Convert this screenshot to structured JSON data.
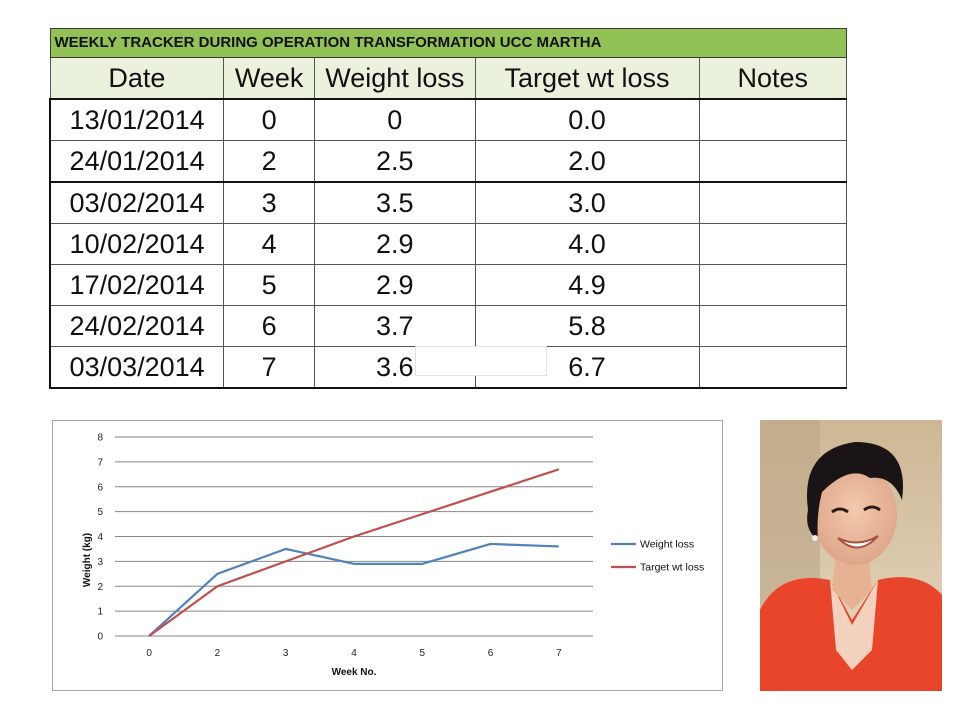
{
  "table": {
    "banner": "WEEKLY TRACKER DURING OPERATION TRANSFORMATION UCC MARTHA",
    "headers": [
      "Date",
      "Week",
      "Weight loss",
      "Target wt loss",
      "Notes"
    ],
    "rows": [
      {
        "date": "13/01/2014",
        "week": "0",
        "loss": "0",
        "target": "0.0",
        "notes": ""
      },
      {
        "date": "24/01/2014",
        "week": "2",
        "loss": "2.5",
        "target": "2.0",
        "notes": ""
      },
      {
        "date": "03/02/2014",
        "week": "3",
        "loss": "3.5",
        "target": "3.0",
        "notes": ""
      },
      {
        "date": "10/02/2014",
        "week": "4",
        "loss": "2.9",
        "target": "4.0",
        "notes": ""
      },
      {
        "date": "17/02/2014",
        "week": "5",
        "loss": "2.9",
        "target": "4.9",
        "notes": ""
      },
      {
        "date": "24/02/2014",
        "week": "6",
        "loss": "3.7",
        "target": "5.8",
        "notes": ""
      },
      {
        "date": "03/03/2014",
        "week": "7",
        "loss": "3.6",
        "target": "6.7",
        "notes": ""
      }
    ]
  },
  "chart_data": {
    "type": "line",
    "title": "",
    "xlabel": "Week No.",
    "ylabel": "Weight (kg)",
    "categories": [
      "0",
      "2",
      "3",
      "4",
      "5",
      "6",
      "7"
    ],
    "ylim": [
      0,
      8
    ],
    "yticks": [
      0,
      1,
      2,
      3,
      4,
      5,
      6,
      7,
      8
    ],
    "grid": true,
    "legend_position": "right",
    "series": [
      {
        "name": "Weight loss",
        "color": "#4f81bd",
        "values": [
          0,
          2.5,
          3.5,
          2.9,
          2.9,
          3.7,
          3.6
        ]
      },
      {
        "name": "Target wt loss",
        "color": "#c0504d",
        "values": [
          0,
          2.0,
          3.0,
          4.0,
          4.9,
          5.8,
          6.7
        ]
      }
    ]
  },
  "colors": {
    "banner_bg": "#92c156",
    "header_bg": "#eaf1dd",
    "photo_bg": "#d8c5a8",
    "jacket": "#e8452a"
  },
  "photo": {
    "subject": "smiling woman with short dark hair in orange jacket"
  }
}
